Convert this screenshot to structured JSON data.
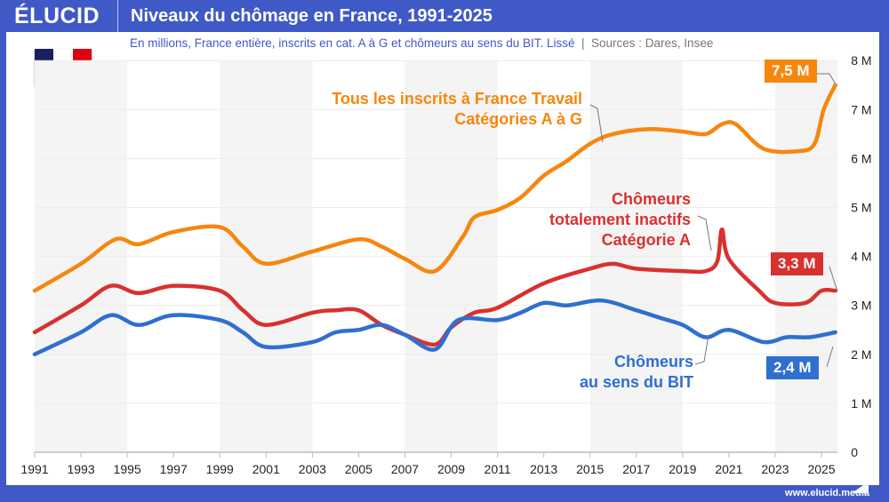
{
  "header": {
    "logo": "ÉLUCID",
    "title": "Niveaux du chômage en France, 1991-2025"
  },
  "subtitle": "En millions, France entière, inscrits en cat. A à G et chômeurs au sens du BIT. Lissé",
  "sources": "Sources : Dares, Insee",
  "footer": "www.elucid.media",
  "flag_colors": [
    "#1a1f5e",
    "#ffffff",
    "#e1000f"
  ],
  "chart_data": {
    "type": "line",
    "xlim": [
      1991,
      2025.7
    ],
    "ylim": [
      0,
      8
    ],
    "x_ticks": [
      "1991",
      "1993",
      "1995",
      "1997",
      "1999",
      "2001",
      "2003",
      "2005",
      "2007",
      "2009",
      "2011",
      "2013",
      "2015",
      "2017",
      "2019",
      "2021",
      "2023",
      "2025"
    ],
    "y_ticks": [
      "0",
      "1 M",
      "2 M",
      "3 M",
      "4 M",
      "5 M",
      "6 M",
      "7 M",
      "8 M"
    ],
    "grid": true,
    "series": [
      {
        "name": "Tous les inscrits à France Travail\nCatégories A à G",
        "label_lines": [
          "Tous les inscrits à France Travail",
          "Catégories A à G"
        ],
        "color": "#f7860f",
        "end_label": "7,5 M",
        "x": [
          1991,
          1993,
          1994.5,
          1995.5,
          1997,
          1999,
          2000,
          2001,
          2003,
          2005,
          2006,
          2007,
          2008.3,
          2009.5,
          2010,
          2011,
          2012,
          2013,
          2014,
          2015,
          2016,
          2017.5,
          2019,
          2020,
          2020.7,
          2021.3,
          2022.5,
          2024,
          2024.7,
          2025.1,
          2025.6
        ],
        "y": [
          3.3,
          3.85,
          4.35,
          4.25,
          4.5,
          4.6,
          4.2,
          3.85,
          4.1,
          4.35,
          4.2,
          3.95,
          3.7,
          4.4,
          4.8,
          4.95,
          5.2,
          5.65,
          5.95,
          6.3,
          6.5,
          6.6,
          6.55,
          6.5,
          6.7,
          6.7,
          6.2,
          6.15,
          6.3,
          7.0,
          7.5
        ]
      },
      {
        "name": "Chômeurs totalement inactifs\nCatégorie A",
        "label_lines": [
          "Chômeurs",
          "totalement inactifs",
          "Catégorie A"
        ],
        "color": "#d8312f",
        "end_label": "3,3 M",
        "x": [
          1991,
          1993,
          1994.3,
          1995.5,
          1997,
          1999,
          2000,
          2001,
          2003,
          2004,
          2005,
          2006,
          2007,
          2008.3,
          2009,
          2010,
          2011,
          2013,
          2015,
          2016,
          2017,
          2019,
          2020,
          2020.5,
          2020.7,
          2021,
          2022.3,
          2023,
          2024.3,
          2025,
          2025.6
        ],
        "y": [
          2.45,
          3.0,
          3.4,
          3.25,
          3.4,
          3.3,
          2.9,
          2.6,
          2.85,
          2.9,
          2.9,
          2.6,
          2.4,
          2.2,
          2.55,
          2.85,
          2.95,
          3.45,
          3.75,
          3.85,
          3.75,
          3.7,
          3.7,
          3.9,
          4.55,
          3.95,
          3.3,
          3.05,
          3.05,
          3.3,
          3.3
        ]
      },
      {
        "name": "Chômeurs\nau sens du BIT",
        "label_lines": [
          "Chômeurs",
          "au sens du BIT"
        ],
        "color": "#2f6fd0",
        "end_label": "2,4 M",
        "x": [
          1991,
          1993,
          1994.3,
          1995.5,
          1997,
          1999,
          2000,
          2001,
          2003,
          2004,
          2005,
          2006,
          2007,
          2008.3,
          2009.3,
          2011,
          2012,
          2013,
          2014,
          2015.5,
          2017,
          2018,
          2019,
          2020,
          2021,
          2022.5,
          2023.5,
          2024.5,
          2025.6
        ],
        "y": [
          2.0,
          2.45,
          2.8,
          2.6,
          2.8,
          2.7,
          2.45,
          2.15,
          2.25,
          2.45,
          2.5,
          2.6,
          2.4,
          2.1,
          2.7,
          2.7,
          2.85,
          3.05,
          3.0,
          3.1,
          2.9,
          2.75,
          2.6,
          2.35,
          2.5,
          2.25,
          2.35,
          2.35,
          2.45
        ]
      }
    ]
  }
}
